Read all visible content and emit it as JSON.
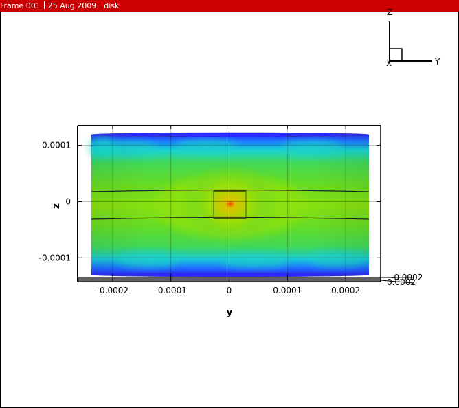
{
  "titlebar": {
    "frame": "Frame 001",
    "date": "25 Aug 2009",
    "name": "disk"
  },
  "axes_triad": {
    "z": "Z",
    "y": "Y",
    "x": "X"
  },
  "colors": {
    "titlebar": "#cc0000",
    "low": "#2a2aff",
    "mid": "#66dd22",
    "high": "#ff0000"
  },
  "chart_data": {
    "type": "heatmap",
    "title": "",
    "xlabel": "y",
    "ylabel": "z",
    "xlim": [
      -0.00026,
      0.00026
    ],
    "ylim": [
      -0.000135,
      0.000135
    ],
    "x_ticks": [
      -0.0002,
      -0.0001,
      0,
      0.0001,
      0.0002
    ],
    "x_tick_labels": [
      "-0.0002",
      "-0.0001",
      "0",
      "0.0001",
      "0.0002"
    ],
    "y_ticks": [
      0.0001,
      0,
      -0.0001
    ],
    "y_tick_labels": [
      "0.0001",
      "0",
      "-0.0001"
    ],
    "depth_axis_tick_labels": [
      "-0.0002",
      "0.0002"
    ],
    "grid": true
  }
}
